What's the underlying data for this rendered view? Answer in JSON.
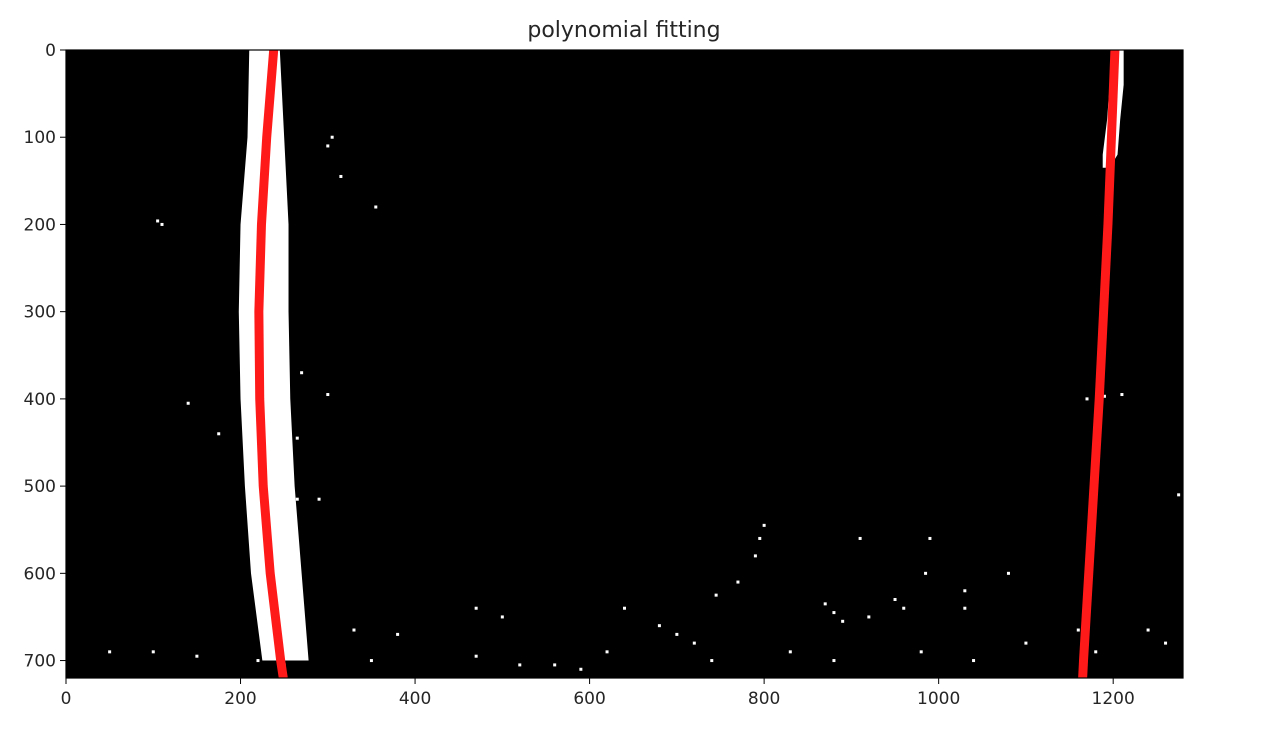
{
  "chart_data": {
    "type": "image",
    "title": "polynomial fitting",
    "xlabel": "",
    "ylabel": "",
    "xlim": [
      0,
      1280
    ],
    "ylim": [
      720,
      0
    ],
    "x_ticks": [
      0,
      200,
      400,
      600,
      800,
      1000,
      1200
    ],
    "y_ticks": [
      0,
      100,
      200,
      300,
      400,
      500,
      600,
      700
    ],
    "background_color": "#000000",
    "pixel_color": "#ffffff",
    "fit_color": "#ff1a1a",
    "series": [
      {
        "y": [
          0,
          100,
          200,
          300,
          400,
          500,
          600,
          700,
          720
        ],
        "x": [
          238,
          230,
          224,
          221,
          222,
          226,
          234,
          246,
          249
        ]
      },
      {
        "y": [
          0,
          100,
          200,
          300,
          400,
          500,
          600,
          700,
          720
        ],
        "x": [
          1202,
          1198,
          1194,
          1189,
          1184,
          1178,
          1172,
          1166,
          1165
        ]
      }
    ],
    "lane_pixels": [
      {
        "y": [
          0,
          100,
          200,
          300,
          400,
          500,
          600,
          700
        ],
        "x_left": [
          210,
          208,
          200,
          198,
          200,
          205,
          212,
          225
        ],
        "x_right": [
          245,
          250,
          255,
          255,
          257,
          262,
          270,
          278
        ]
      },
      {
        "y": [
          0,
          40,
          80,
          120,
          135
        ],
        "x_left": [
          1200,
          1196,
          1193,
          1188,
          1188
        ],
        "x_right": [
          1212,
          1212,
          1208,
          1205,
          1196
        ]
      }
    ],
    "noise_blobs": [
      [
        305,
        100
      ],
      [
        300,
        110
      ],
      [
        110,
        200
      ],
      [
        105,
        196
      ],
      [
        315,
        145
      ],
      [
        355,
        180
      ],
      [
        270,
        370
      ],
      [
        140,
        405
      ],
      [
        175,
        440
      ],
      [
        265,
        445
      ],
      [
        300,
        395
      ],
      [
        1190,
        397
      ],
      [
        1210,
        395
      ],
      [
        1170,
        400
      ],
      [
        1275,
        510
      ],
      [
        265,
        515
      ],
      [
        290,
        515
      ],
      [
        800,
        545
      ],
      [
        795,
        560
      ],
      [
        790,
        580
      ],
      [
        770,
        610
      ],
      [
        745,
        625
      ],
      [
        910,
        560
      ],
      [
        870,
        635
      ],
      [
        880,
        645
      ],
      [
        890,
        655
      ],
      [
        920,
        650
      ],
      [
        960,
        640
      ],
      [
        1030,
        640
      ],
      [
        1160,
        665
      ],
      [
        1170,
        680
      ],
      [
        1180,
        690
      ],
      [
        50,
        690
      ],
      [
        100,
        690
      ],
      [
        150,
        695
      ],
      [
        220,
        700
      ],
      [
        250,
        705
      ],
      [
        330,
        665
      ],
      [
        380,
        670
      ],
      [
        350,
        700
      ],
      [
        470,
        695
      ],
      [
        520,
        705
      ],
      [
        560,
        705
      ],
      [
        590,
        710
      ],
      [
        680,
        660
      ],
      [
        700,
        670
      ],
      [
        720,
        680
      ],
      [
        830,
        690
      ],
      [
        880,
        700
      ],
      [
        980,
        690
      ],
      [
        1040,
        700
      ],
      [
        1100,
        680
      ],
      [
        1240,
        665
      ],
      [
        1260,
        680
      ],
      [
        640,
        640
      ],
      [
        500,
        650
      ],
      [
        470,
        640
      ],
      [
        620,
        690
      ],
      [
        740,
        700
      ],
      [
        990,
        560
      ],
      [
        985,
        600
      ],
      [
        950,
        630
      ],
      [
        1030,
        620
      ],
      [
        1080,
        600
      ]
    ]
  }
}
